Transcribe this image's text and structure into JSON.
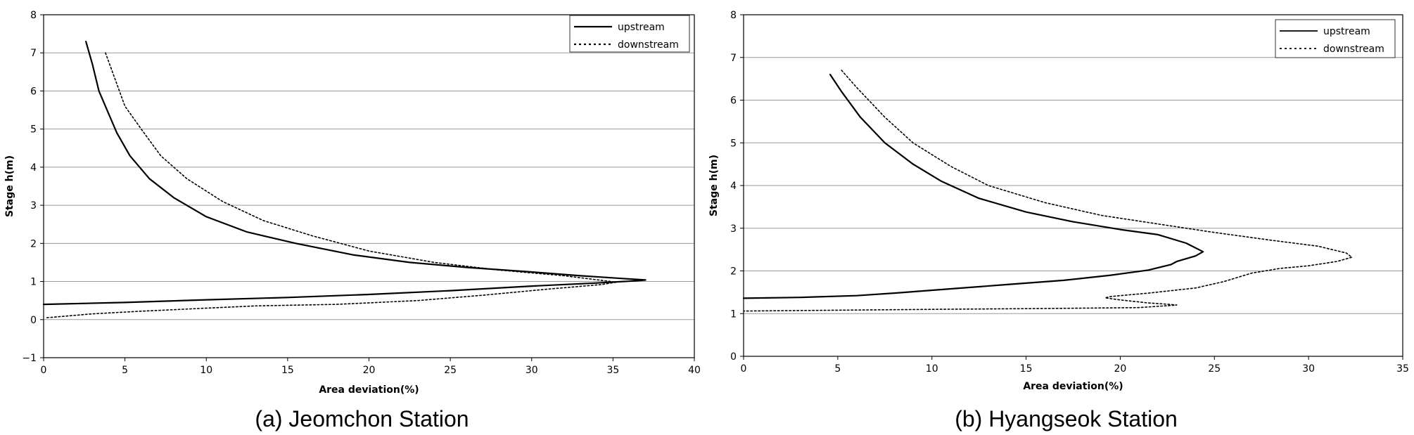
{
  "chart_data": [
    {
      "type": "line",
      "caption": "(a) Jeomchon Station",
      "xlabel": "Area deviation(%)",
      "ylabel": "Stage h(m)",
      "xlim": [
        0,
        40
      ],
      "ylim": [
        -1,
        8
      ],
      "xticks": [
        0,
        5,
        10,
        15,
        20,
        25,
        30,
        35,
        40
      ],
      "yticks": [
        -1,
        0,
        1,
        2,
        3,
        4,
        5,
        6,
        7,
        8
      ],
      "grid": "horizontal",
      "legend_position": "top-right",
      "series": [
        {
          "name": "upstream",
          "style": "solid",
          "points": [
            [
              2.6,
              7.3
            ],
            [
              3.0,
              6.7
            ],
            [
              3.4,
              6.0
            ],
            [
              4.0,
              5.4
            ],
            [
              4.5,
              4.9
            ],
            [
              5.3,
              4.3
            ],
            [
              6.5,
              3.7
            ],
            [
              8.0,
              3.2
            ],
            [
              10.0,
              2.7
            ],
            [
              12.5,
              2.3
            ],
            [
              15.5,
              2.0
            ],
            [
              19.0,
              1.7
            ],
            [
              22.5,
              1.5
            ],
            [
              26.0,
              1.37
            ],
            [
              30.0,
              1.25
            ],
            [
              33.0,
              1.15
            ],
            [
              35.5,
              1.08
            ],
            [
              37.0,
              1.04
            ],
            [
              36.5,
              1.02
            ],
            [
              34.0,
              0.96
            ],
            [
              30.0,
              0.88
            ],
            [
              25.0,
              0.76
            ],
            [
              20.0,
              0.66
            ],
            [
              15.0,
              0.58
            ],
            [
              10.0,
              0.52
            ],
            [
              5.0,
              0.45
            ],
            [
              0.0,
              0.4
            ]
          ]
        },
        {
          "name": "downstream",
          "style": "dotted",
          "points": [
            [
              3.8,
              7.0
            ],
            [
              4.4,
              6.3
            ],
            [
              5.0,
              5.6
            ],
            [
              6.0,
              5.0
            ],
            [
              7.2,
              4.3
            ],
            [
              8.8,
              3.7
            ],
            [
              11.0,
              3.1
            ],
            [
              13.5,
              2.6
            ],
            [
              16.5,
              2.2
            ],
            [
              20.0,
              1.8
            ],
            [
              24.0,
              1.5
            ],
            [
              28.0,
              1.3
            ],
            [
              32.0,
              1.15
            ],
            [
              34.5,
              1.02
            ],
            [
              35.2,
              0.98
            ],
            [
              34.3,
              0.92
            ],
            [
              31.0,
              0.8
            ],
            [
              27.0,
              0.64
            ],
            [
              23.0,
              0.5
            ],
            [
              18.0,
              0.4
            ],
            [
              13.0,
              0.36
            ],
            [
              9.0,
              0.28
            ],
            [
              6.0,
              0.22
            ],
            [
              3.0,
              0.15
            ],
            [
              0.2,
              0.05
            ]
          ]
        }
      ]
    },
    {
      "type": "line",
      "caption": "(b) Hyangseok Station",
      "xlabel": "Area deviation(%)",
      "ylabel": "Stage h(m)",
      "xlim": [
        0,
        35
      ],
      "ylim": [
        0,
        8
      ],
      "xticks": [
        0,
        5,
        10,
        15,
        20,
        25,
        30,
        35
      ],
      "yticks": [
        0,
        1,
        2,
        3,
        4,
        5,
        6,
        7,
        8
      ],
      "grid": "horizontal",
      "legend_position": "top-right",
      "series": [
        {
          "name": "upstream",
          "style": "solid",
          "points": [
            [
              4.6,
              6.6
            ],
            [
              5.2,
              6.2
            ],
            [
              6.2,
              5.6
            ],
            [
              7.5,
              5.0
            ],
            [
              9.0,
              4.5
            ],
            [
              10.5,
              4.1
            ],
            [
              12.5,
              3.7
            ],
            [
              15.0,
              3.38
            ],
            [
              17.5,
              3.15
            ],
            [
              20.0,
              2.97
            ],
            [
              22.0,
              2.85
            ],
            [
              23.5,
              2.65
            ],
            [
              24.4,
              2.45
            ],
            [
              24.0,
              2.35
            ],
            [
              23.0,
              2.22
            ],
            [
              22.7,
              2.15
            ],
            [
              21.5,
              2.02
            ],
            [
              19.5,
              1.9
            ],
            [
              17.0,
              1.78
            ],
            [
              14.0,
              1.68
            ],
            [
              11.0,
              1.58
            ],
            [
              8.0,
              1.48
            ],
            [
              6.0,
              1.42
            ],
            [
              3.0,
              1.38
            ],
            [
              0.0,
              1.36
            ]
          ]
        },
        {
          "name": "downstream",
          "style": "dotted",
          "points": [
            [
              5.2,
              6.7
            ],
            [
              6.0,
              6.3
            ],
            [
              7.5,
              5.6
            ],
            [
              9.0,
              5.0
            ],
            [
              11.0,
              4.45
            ],
            [
              13.0,
              4.0
            ],
            [
              16.0,
              3.6
            ],
            [
              19.0,
              3.3
            ],
            [
              22.0,
              3.1
            ],
            [
              25.0,
              2.9
            ],
            [
              28.0,
              2.72
            ],
            [
              30.5,
              2.58
            ],
            [
              32.0,
              2.42
            ],
            [
              32.3,
              2.32
            ],
            [
              31.5,
              2.22
            ],
            [
              30.0,
              2.12
            ],
            [
              28.5,
              2.06
            ],
            [
              27.0,
              1.95
            ],
            [
              25.5,
              1.75
            ],
            [
              24.0,
              1.6
            ],
            [
              21.5,
              1.48
            ],
            [
              20.5,
              1.44
            ],
            [
              19.5,
              1.4
            ],
            [
              19.2,
              1.37
            ],
            [
              20.0,
              1.32
            ],
            [
              21.5,
              1.25
            ],
            [
              22.5,
              1.22
            ],
            [
              23.0,
              1.2
            ],
            [
              21.0,
              1.14
            ],
            [
              16.0,
              1.12
            ],
            [
              10.0,
              1.1
            ],
            [
              5.0,
              1.08
            ],
            [
              0.0,
              1.06
            ]
          ]
        }
      ]
    }
  ]
}
